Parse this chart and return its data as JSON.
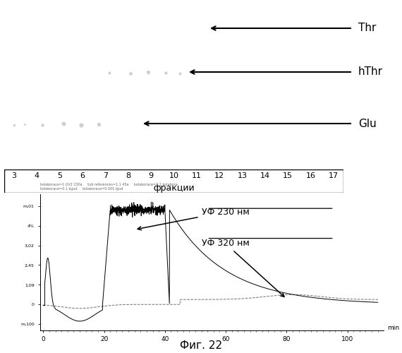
{
  "title_caption": "Фиг. 22",
  "tlc_labels": [
    "Thr",
    "hThr",
    "Glu"
  ],
  "fraction_numbers": [
    3,
    4,
    5,
    6,
    7,
    8,
    9,
    10,
    11,
    12,
    13,
    14,
    15,
    16,
    17
  ],
  "fraction_label": "фракции",
  "uv230_label": "УФ 230 нм",
  "uv320_label": "УФ 320 нм",
  "bg_color": "#ffffff",
  "tlc_spot_color": "#999999",
  "arrow_color": "#000000",
  "box_color": "#000000",
  "chromatogram_color1": "#000000",
  "chromatogram_color2": "#555555",
  "ytick_labels": [
    "m,01",
    "4%",
    "3,02",
    "2,45",
    "1,09",
    "0",
    "m,100"
  ],
  "xtick_labels": [
    "0",
    "20",
    "40",
    "60",
    "80",
    "100"
  ]
}
